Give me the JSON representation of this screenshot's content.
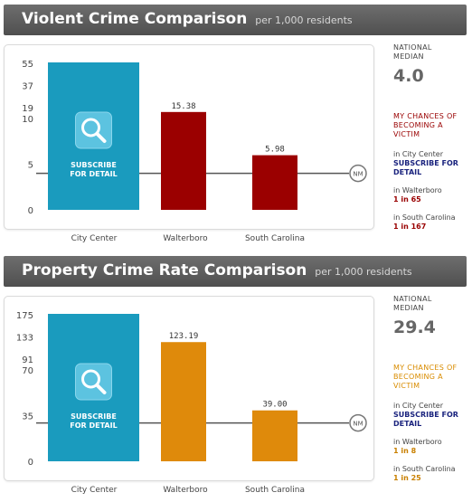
{
  "colors": {
    "subscribe_bar": "#1a9bbe",
    "violent_bar": "#9b0000",
    "property_bar": "#df8a0b",
    "header_bg": "#5a5a5a",
    "median_line": "#555555"
  },
  "panels": [
    {
      "title": "Violent Crime Comparison",
      "subtitle": "per 1,000 residents",
      "national_median_label": "NATIONAL MEDIAN",
      "national_median_value": "4.0",
      "chances_label": "MY CHANCES OF BECOMING A VICTIM",
      "chances": [
        {
          "place": "in City Center",
          "odds": "SUBSCRIBE FOR DETAIL",
          "is_link": true
        },
        {
          "place": "in Walterboro",
          "odds": "1 in 65",
          "is_link": false
        },
        {
          "place": "in South Carolina",
          "odds": "1 in 167",
          "is_link": false
        }
      ],
      "nm_marker": "NM",
      "subscribe_text": [
        "SUBSCRIBE",
        "FOR DETAIL"
      ]
    },
    {
      "title": "Property Crime Rate Comparison",
      "subtitle": "per 1,000 residents",
      "national_median_label": "NATIONAL MEDIAN",
      "national_median_value": "29.4",
      "chances_label": "MY CHANCES OF BECOMING A VICTIM",
      "chances": [
        {
          "place": "in City Center",
          "odds": "SUBSCRIBE FOR DETAIL",
          "is_link": true
        },
        {
          "place": "in Walterboro",
          "odds": "1 in 8",
          "is_link": false
        },
        {
          "place": "in South Carolina",
          "odds": "1 in 25",
          "is_link": false
        }
      ],
      "nm_marker": "NM",
      "subscribe_text": [
        "SUBSCRIBE",
        "FOR DETAIL"
      ]
    }
  ],
  "chart_data": [
    {
      "type": "bar",
      "title": "Violent Crime Comparison",
      "subtitle": "per 1,000 residents",
      "categories": [
        "City Center",
        "Walterboro",
        "South Carolina"
      ],
      "values": [
        null,
        15.38,
        5.98
      ],
      "value_labels": [
        "",
        "15.38",
        "5.98"
      ],
      "locked": [
        true,
        false,
        false
      ],
      "yticks": [
        "55",
        "37",
        "19",
        "10",
        "5",
        "0"
      ],
      "ytick_values": [
        55,
        37,
        19,
        10,
        5,
        0
      ],
      "median": 4.0,
      "axis_break": [
        10,
        19
      ]
    },
    {
      "type": "bar",
      "title": "Property Crime Rate Comparison",
      "subtitle": "per 1,000 residents",
      "categories": [
        "City Center",
        "Walterboro",
        "South Carolina"
      ],
      "values": [
        null,
        123.19,
        39.0
      ],
      "value_labels": [
        "",
        "123.19",
        "39.00"
      ],
      "locked": [
        true,
        false,
        false
      ],
      "yticks": [
        "175",
        "133",
        "91",
        "70",
        "35",
        "0"
      ],
      "ytick_values": [
        175,
        133,
        91,
        70,
        35,
        0
      ],
      "median": 29.4,
      "axis_break": [
        70,
        91
      ]
    }
  ]
}
